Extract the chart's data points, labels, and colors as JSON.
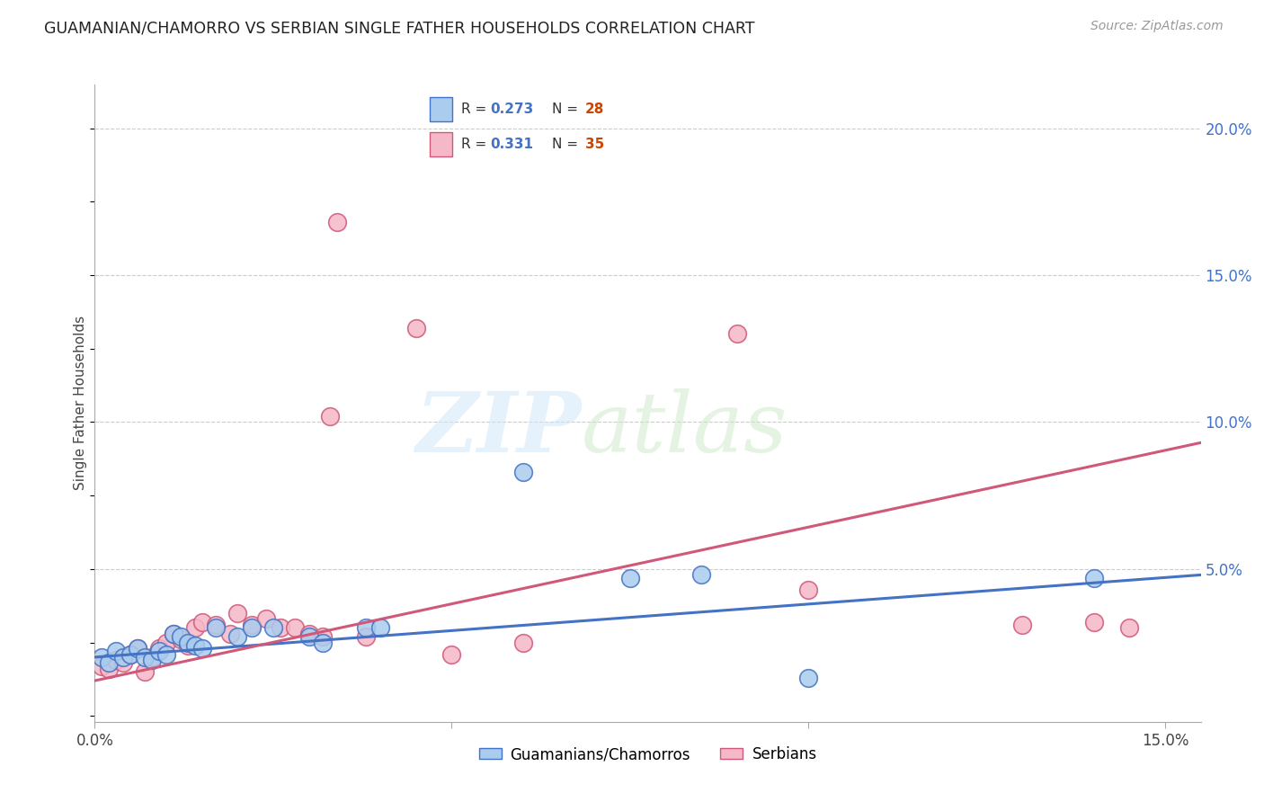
{
  "title": "GUAMANIAN/CHAMORRO VS SERBIAN SINGLE FATHER HOUSEHOLDS CORRELATION CHART",
  "source": "Source: ZipAtlas.com",
  "ylabel": "Single Father Households",
  "xlim": [
    0.0,
    0.155
  ],
  "ylim": [
    -0.002,
    0.215
  ],
  "color_blue": "#AACCEE",
  "color_pink": "#F5B8C8",
  "line_blue": "#4472C4",
  "line_pink": "#D05878",
  "label_blue": "Guamanians/Chamorros",
  "label_pink": "Serbians",
  "guam_x": [
    0.001,
    0.002,
    0.003,
    0.004,
    0.005,
    0.006,
    0.007,
    0.008,
    0.009,
    0.01,
    0.011,
    0.012,
    0.013,
    0.014,
    0.015,
    0.017,
    0.02,
    0.022,
    0.025,
    0.03,
    0.032,
    0.038,
    0.04,
    0.06,
    0.075,
    0.085,
    0.1,
    0.14
  ],
  "guam_y": [
    0.02,
    0.018,
    0.022,
    0.02,
    0.021,
    0.023,
    0.02,
    0.019,
    0.022,
    0.021,
    0.028,
    0.027,
    0.025,
    0.024,
    0.023,
    0.03,
    0.027,
    0.03,
    0.03,
    0.027,
    0.025,
    0.03,
    0.03,
    0.083,
    0.047,
    0.048,
    0.013,
    0.047
  ],
  "serb_x": [
    0.001,
    0.002,
    0.003,
    0.004,
    0.005,
    0.006,
    0.007,
    0.008,
    0.009,
    0.01,
    0.011,
    0.012,
    0.013,
    0.014,
    0.015,
    0.017,
    0.019,
    0.02,
    0.022,
    0.024,
    0.026,
    0.028,
    0.03,
    0.032,
    0.033,
    0.034,
    0.038,
    0.045,
    0.05,
    0.06,
    0.09,
    0.1,
    0.13,
    0.14,
    0.145
  ],
  "serb_y": [
    0.017,
    0.016,
    0.019,
    0.018,
    0.021,
    0.023,
    0.015,
    0.02,
    0.023,
    0.025,
    0.028,
    0.026,
    0.024,
    0.03,
    0.032,
    0.031,
    0.028,
    0.035,
    0.031,
    0.033,
    0.03,
    0.03,
    0.028,
    0.027,
    0.102,
    0.168,
    0.027,
    0.132,
    0.021,
    0.025,
    0.13,
    0.043,
    0.031,
    0.032,
    0.03
  ],
  "guam_line_x0": 0.0,
  "guam_line_y0": 0.02,
  "guam_line_x1": 0.155,
  "guam_line_y1": 0.048,
  "serb_line_x0": 0.0,
  "serb_line_y0": 0.012,
  "serb_line_x1": 0.155,
  "serb_line_y1": 0.093
}
